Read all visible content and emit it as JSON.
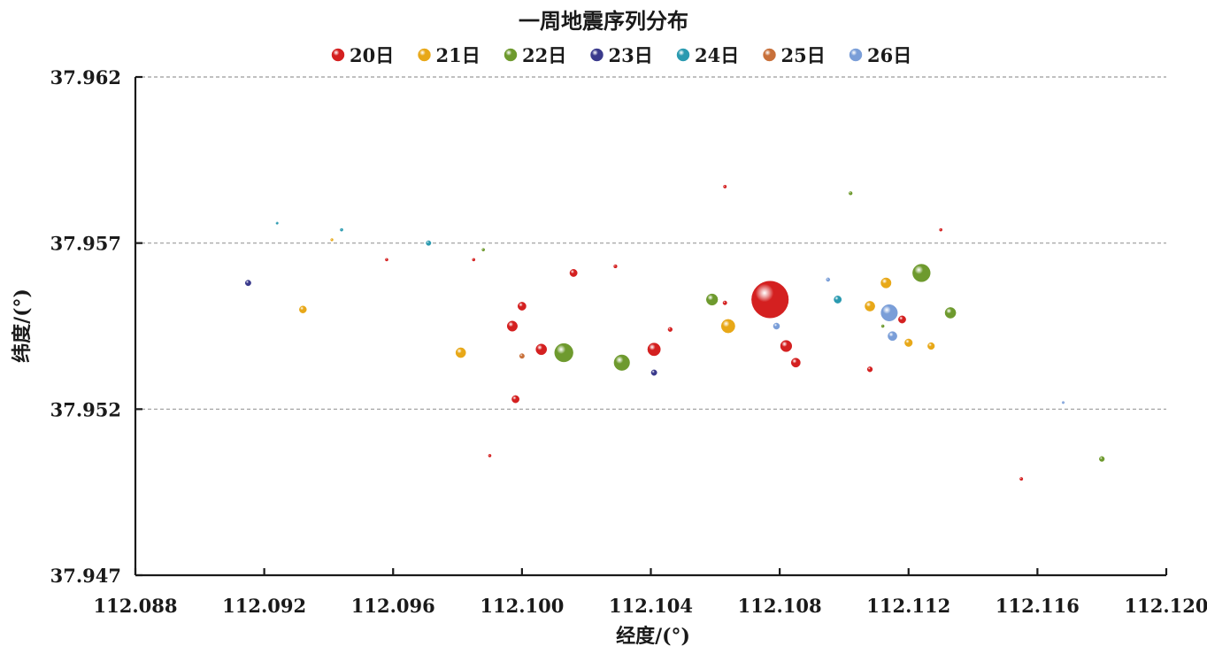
{
  "chart_data": {
    "type": "scatter",
    "title": "一周地震序列分布",
    "xlabel": "经度/(°)",
    "ylabel": "纬度/(°)",
    "xlim": [
      112.088,
      112.12
    ],
    "ylim": [
      37.947,
      37.962
    ],
    "x_ticks": [
      "112.088",
      "112.092",
      "112.096",
      "112.100",
      "112.104",
      "112.108",
      "112.112",
      "112.116",
      "112.120"
    ],
    "y_ticks": [
      "37.962",
      "37.957",
      "37.952",
      "37.947"
    ],
    "grid": "horizontal dashed at 37.962, 37.957, 37.952",
    "legend_position": "top-center",
    "series": [
      {
        "name": "20日",
        "color": "#d42020",
        "points": [
          {
            "x": 112.1077,
            "y": 37.9553,
            "size": 13
          },
          {
            "x": 112.1041,
            "y": 37.9538,
            "size": 4.5
          },
          {
            "x": 112.1082,
            "y": 37.9539,
            "size": 4
          },
          {
            "x": 112.1006,
            "y": 37.9538,
            "size": 3.8
          },
          {
            "x": 112.0997,
            "y": 37.9545,
            "size": 3.6
          },
          {
            "x": 112.1085,
            "y": 37.9534,
            "size": 3.2
          },
          {
            "x": 112.1,
            "y": 37.9551,
            "size": 2.9
          },
          {
            "x": 112.1016,
            "y": 37.9561,
            "size": 2.6
          },
          {
            "x": 112.0998,
            "y": 37.9523,
            "size": 2.6
          },
          {
            "x": 112.1118,
            "y": 37.9547,
            "size": 2.6
          },
          {
            "x": 112.1108,
            "y": 37.9532,
            "size": 1.8
          },
          {
            "x": 112.1046,
            "y": 37.9544,
            "size": 1.5
          },
          {
            "x": 112.1063,
            "y": 37.9552,
            "size": 1.4
          },
          {
            "x": 112.1029,
            "y": 37.9563,
            "size": 1.2
          },
          {
            "x": 112.1063,
            "y": 37.9587,
            "size": 1.1
          },
          {
            "x": 112.0958,
            "y": 37.9565,
            "size": 1.0
          },
          {
            "x": 112.0985,
            "y": 37.9565,
            "size": 1.0
          },
          {
            "x": 112.113,
            "y": 37.9574,
            "size": 1.0
          },
          {
            "x": 112.099,
            "y": 37.9506,
            "size": 1.0
          },
          {
            "x": 112.1155,
            "y": 37.9499,
            "size": 1.1
          }
        ]
      },
      {
        "name": "21日",
        "color": "#e8a818",
        "points": [
          {
            "x": 112.1064,
            "y": 37.9545,
            "size": 4.8
          },
          {
            "x": 112.0981,
            "y": 37.9537,
            "size": 3.5
          },
          {
            "x": 112.1113,
            "y": 37.9558,
            "size": 3.6
          },
          {
            "x": 112.1108,
            "y": 37.9551,
            "size": 3.5
          },
          {
            "x": 112.0932,
            "y": 37.955,
            "size": 2.5
          },
          {
            "x": 112.112,
            "y": 37.954,
            "size": 2.7
          },
          {
            "x": 112.1127,
            "y": 37.9539,
            "size": 2.4
          },
          {
            "x": 112.0941,
            "y": 37.9571,
            "size": 0.9
          }
        ]
      },
      {
        "name": "22日",
        "color": "#6e9a2e",
        "points": [
          {
            "x": 112.1013,
            "y": 37.9537,
            "size": 6.5
          },
          {
            "x": 112.1031,
            "y": 37.9534,
            "size": 5.5
          },
          {
            "x": 112.1124,
            "y": 37.9561,
            "size": 6.2
          },
          {
            "x": 112.1059,
            "y": 37.9553,
            "size": 4.0
          },
          {
            "x": 112.1133,
            "y": 37.9549,
            "size": 3.8
          },
          {
            "x": 112.118,
            "y": 37.9505,
            "size": 1.8
          },
          {
            "x": 112.1102,
            "y": 37.9585,
            "size": 1.2
          },
          {
            "x": 112.0988,
            "y": 37.9568,
            "size": 1.0
          },
          {
            "x": 112.1112,
            "y": 37.9545,
            "size": 1.0
          }
        ]
      },
      {
        "name": "23日",
        "color": "#3a3a8c",
        "points": [
          {
            "x": 112.0915,
            "y": 37.9558,
            "size": 2.0
          },
          {
            "x": 112.1041,
            "y": 37.9531,
            "size": 2.0
          }
        ]
      },
      {
        "name": "24日",
        "color": "#2a9ab0",
        "points": [
          {
            "x": 112.1098,
            "y": 37.9553,
            "size": 2.6
          },
          {
            "x": 112.0971,
            "y": 37.957,
            "size": 1.7
          },
          {
            "x": 112.0944,
            "y": 37.9574,
            "size": 1.0
          },
          {
            "x": 112.0924,
            "y": 37.9576,
            "size": 0.8
          }
        ]
      },
      {
        "name": "25日",
        "color": "#c8703a",
        "points": [
          {
            "x": 112.1,
            "y": 37.9536,
            "size": 1.7
          }
        ]
      },
      {
        "name": "26日",
        "color": "#7a9ed8",
        "points": [
          {
            "x": 112.1114,
            "y": 37.9549,
            "size": 5.8
          },
          {
            "x": 112.1115,
            "y": 37.9542,
            "size": 3.2
          },
          {
            "x": 112.1079,
            "y": 37.9545,
            "size": 2.2
          },
          {
            "x": 112.1095,
            "y": 37.9559,
            "size": 1.3
          },
          {
            "x": 112.1168,
            "y": 37.9522,
            "size": 0.8
          }
        ]
      }
    ]
  }
}
